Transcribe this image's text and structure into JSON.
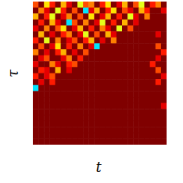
{
  "chart_data": {
    "type": "heatmap",
    "xlabel": "t",
    "ylabel": "τ",
    "tick_labels": false,
    "xlim": [
      0,
      24
    ],
    "ylim": [
      0,
      24
    ],
    "colorbar_range": [
      0,
      1
    ],
    "cells": [
      [
        0.8,
        1,
        0.65,
        0.85,
        1,
        0.7,
        0.9,
        1,
        0.6,
        0.8,
        0.75,
        1,
        0.85,
        0.65,
        1,
        0.9,
        0.7,
        1,
        0.8,
        0.6,
        1,
        0.85,
        0.75,
        1
      ],
      [
        1,
        0.75,
        0.9,
        1,
        0.6,
        0.85,
        1,
        0.8,
        1,
        0.35,
        0.9,
        0.7,
        1,
        0.85,
        0.65,
        1,
        0.8,
        0.9,
        1,
        0.7,
        0.85,
        1,
        1,
        0.9
      ],
      [
        0.7,
        1,
        0.85,
        0.6,
        1,
        0.9,
        0.75,
        1,
        0.8,
        1,
        0.65,
        1,
        0.9,
        0.7,
        1,
        0.85,
        1,
        0.6,
        0.9,
        1,
        0.75,
        1,
        1,
        1
      ],
      [
        1,
        0.85,
        1,
        0.7,
        0.9,
        1,
        0.35,
        0.8,
        1,
        0.75,
        1,
        0.9,
        0.6,
        1,
        0.85,
        1,
        0.7,
        1,
        0.9,
        1,
        1,
        1,
        1,
        1
      ],
      [
        0.9,
        1,
        0.75,
        1,
        0.8,
        0.65,
        1,
        0.9,
        0.7,
        1,
        0.85,
        1,
        0.75,
        0.9,
        1,
        0.6,
        1,
        0.8,
        1,
        1,
        1,
        1,
        1,
        1
      ],
      [
        1,
        0.7,
        1,
        0.9,
        1,
        0.85,
        0.75,
        1,
        0.9,
        0.6,
        1,
        0.8,
        1,
        0.7,
        0.9,
        1,
        1,
        1,
        1,
        1,
        1,
        1,
        0.9,
        1
      ],
      [
        0.85,
        1,
        0.6,
        1,
        0.75,
        1,
        0.9,
        0.8,
        1,
        0.85,
        0.7,
        1,
        0.9,
        1,
        0.75,
        1,
        1,
        1,
        1,
        1,
        1,
        1,
        1,
        1
      ],
      [
        1,
        0.8,
        1,
        0.9,
        0.65,
        1,
        0.85,
        1,
        0.75,
        1,
        0.9,
        0.35,
        1,
        1,
        1,
        1,
        1,
        1,
        1,
        1,
        1,
        1,
        0.8,
        1
      ],
      [
        0.75,
        1,
        0.9,
        1,
        0.85,
        0.7,
        1,
        0.9,
        1,
        0.8,
        1,
        1,
        1,
        1,
        1,
        1,
        1,
        1,
        1,
        1,
        1,
        1,
        1,
        0.85
      ],
      [
        1,
        0.9,
        0.8,
        1,
        1,
        0.9,
        0.75,
        1,
        0.85,
        1,
        1,
        1,
        1,
        1,
        1,
        1,
        1,
        1,
        1,
        1,
        1,
        1,
        0.9,
        1
      ],
      [
        0.9,
        1,
        1,
        0.75,
        0.9,
        1,
        0.85,
        0.8,
        1,
        1,
        1,
        1,
        1,
        1,
        1,
        1,
        1,
        1,
        1,
        1,
        1,
        0.85,
        1,
        1
      ],
      [
        1,
        0.85,
        0.9,
        1,
        0.7,
        1,
        0.9,
        1,
        1,
        1,
        1,
        1,
        1,
        1,
        1,
        1,
        1,
        1,
        1,
        1,
        1,
        1,
        0.8,
        1
      ],
      [
        0.85,
        1,
        0.9,
        0.8,
        1,
        1,
        1,
        1,
        1,
        1,
        1,
        1,
        1,
        1,
        1,
        1,
        1,
        1,
        1,
        1,
        1,
        1,
        1,
        0.9
      ],
      [
        1,
        0.9,
        1,
        0.85,
        1,
        1,
        1,
        1,
        1,
        1,
        1,
        1,
        1,
        1,
        1,
        1,
        1,
        1,
        1,
        1,
        1,
        1,
        0.85,
        1
      ],
      [
        0.35,
        1,
        1,
        1,
        1,
        1,
        1,
        1,
        1,
        1,
        1,
        1,
        1,
        1,
        1,
        1,
        1,
        1,
        1,
        1,
        1,
        1,
        1,
        1
      ],
      [
        1,
        1,
        1,
        1,
        1,
        1,
        1,
        1,
        1,
        1,
        1,
        1,
        1,
        1,
        1,
        1,
        1,
        1,
        1,
        1,
        1,
        1,
        1,
        1
      ],
      [
        1,
        1,
        1,
        1,
        1,
        1,
        1,
        1,
        1,
        1,
        1,
        1,
        1,
        1,
        1,
        1,
        1,
        1,
        1,
        1,
        1,
        1,
        1,
        1
      ],
      [
        1,
        1,
        1,
        1,
        1,
        1,
        1,
        1,
        1,
        1,
        1,
        1,
        1,
        1,
        1,
        1,
        1,
        1,
        1,
        1,
        1,
        1,
        1,
        0.9
      ],
      [
        1,
        1,
        1,
        1,
        1,
        1,
        1,
        1,
        1,
        1,
        1,
        1,
        1,
        1,
        1,
        1,
        1,
        1,
        1,
        1,
        1,
        1,
        1,
        1
      ],
      [
        1,
        1,
        1,
        1,
        1,
        1,
        1,
        1,
        1,
        1,
        1,
        1,
        1,
        1,
        1,
        1,
        1,
        1,
        1,
        1,
        1,
        1,
        1,
        1
      ],
      [
        1,
        1,
        1,
        1,
        1,
        1,
        1,
        1,
        1,
        1,
        1,
        1,
        1,
        1,
        1,
        1,
        1,
        1,
        1,
        1,
        1,
        1,
        1,
        1
      ],
      [
        1,
        1,
        1,
        1,
        1,
        1,
        1,
        1,
        1,
        1,
        1,
        1,
        1,
        1,
        1,
        1,
        1,
        1,
        1,
        1,
        1,
        1,
        1,
        1
      ],
      [
        1,
        1,
        1,
        1,
        1,
        1,
        1,
        1,
        1,
        1,
        1,
        1,
        1,
        1,
        1,
        1,
        1,
        1,
        1,
        1,
        1,
        1,
        1,
        1
      ],
      [
        1,
        1,
        1,
        1,
        1,
        1,
        1,
        1,
        1,
        1,
        1,
        1,
        1,
        1,
        1,
        1,
        1,
        1,
        1,
        1,
        1,
        1,
        1,
        1
      ]
    ]
  }
}
